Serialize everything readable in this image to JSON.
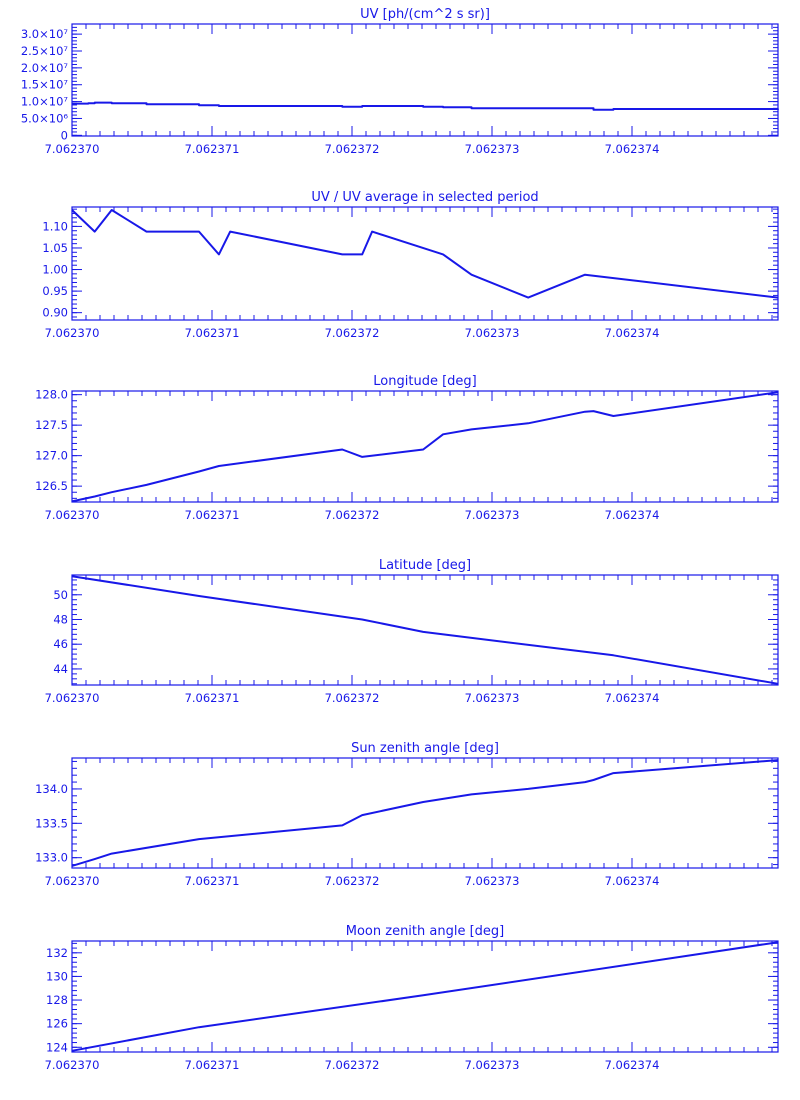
{
  "colors": {
    "line": "#1818e8",
    "background": "#ffffff"
  },
  "chart_data": [
    {
      "type": "line",
      "title": "UV [ph/(cm^2 s sr)]",
      "xlabel": "",
      "ylabel": "",
      "xlim": [
        7.062369885,
        7.06237486
      ],
      "x_ticks": [
        "7.062370",
        "7.062371",
        "7.062372",
        "7.062373",
        "7.062374"
      ],
      "ylim": [
        -200000,
        33000000
      ],
      "y_ticks": [
        {
          "value": 0,
          "label": "0"
        },
        {
          "value": 5000000,
          "label": "5.0×10⁶"
        },
        {
          "value": 10000000,
          "label": "1.0×10⁷"
        },
        {
          "value": 15000000,
          "label": "1.5×10⁷"
        },
        {
          "value": 20000000,
          "label": "2.0×10⁷"
        },
        {
          "value": 25000000,
          "label": "2.5×10⁷"
        },
        {
          "value": 30000000,
          "label": "3.0×10⁷"
        }
      ],
      "step": true,
      "series": [
        {
          "x": [
            7.062369885,
            7.06237,
            7.062370045,
            7.062370165,
            7.06237041,
            7.06237078,
            7.06237092,
            7.06237179,
            7.06237193,
            7.06237236,
            7.0623725,
            7.0623727,
            7.0623727,
            7.06237356,
            7.0623737,
            7.06237486
          ],
          "values": [
            9400000,
            9500000,
            9700000,
            9500000,
            9200000,
            8900000,
            8700000,
            8500000,
            8700000,
            8500000,
            8300000,
            8100000,
            8000000,
            7600000,
            7800000,
            7900000
          ]
        }
      ]
    },
    {
      "type": "line",
      "title": "UV / UV average in selected period",
      "xlabel": "",
      "ylabel": "",
      "xlim": [
        7.062369885,
        7.06237486
      ],
      "x_ticks": [
        "7.062370",
        "7.062371",
        "7.062372",
        "7.062373",
        "7.062374"
      ],
      "ylim": [
        0.883,
        1.145
      ],
      "y_ticks": [
        {
          "value": 0.9,
          "label": "0.90"
        },
        {
          "value": 0.95,
          "label": "0.95"
        },
        {
          "value": 1.0,
          "label": "1.00"
        },
        {
          "value": 1.05,
          "label": "1.05"
        },
        {
          "value": 1.1,
          "label": "1.10"
        }
      ],
      "series": [
        {
          "x": [
            7.062369885,
            7.062370045,
            7.062370165,
            7.06237041,
            7.06237078,
            7.06237092,
            7.062371,
            7.06237179,
            7.06237193,
            7.062372,
            7.0623725,
            7.0623727,
            7.0623731,
            7.0623735,
            7.06237486
          ],
          "values": [
            1.138,
            1.088,
            1.138,
            1.088,
            1.088,
            1.035,
            1.088,
            1.035,
            1.035,
            1.088,
            1.035,
            0.988,
            0.935,
            0.988,
            0.935
          ]
        }
      ]
    },
    {
      "type": "line",
      "title": "Longitude [deg]",
      "xlabel": "",
      "ylabel": "",
      "xlim": [
        7.062369885,
        7.06237486
      ],
      "x_ticks": [
        "7.062370",
        "7.062371",
        "7.062372",
        "7.062373",
        "7.062374"
      ],
      "ylim": [
        126.24,
        128.06
      ],
      "y_ticks": [
        {
          "value": 126.5,
          "label": "126.5"
        },
        {
          "value": 127.0,
          "label": "127.0"
        },
        {
          "value": 127.5,
          "label": "127.5"
        },
        {
          "value": 128.0,
          "label": "128.0"
        }
      ],
      "series": [
        {
          "x": [
            7.062369885,
            7.062370045,
            7.062370165,
            7.06237041,
            7.06237078,
            7.06237092,
            7.06237179,
            7.06237193,
            7.06237236,
            7.0623725,
            7.0623727,
            7.0623731,
            7.0623735,
            7.06237356,
            7.0623737,
            7.06237486
          ],
          "values": [
            126.25,
            126.33,
            126.4,
            126.52,
            126.74,
            126.83,
            127.1,
            126.98,
            127.1,
            127.35,
            127.43,
            127.53,
            127.72,
            127.73,
            127.65,
            128.04
          ]
        }
      ]
    },
    {
      "type": "line",
      "title": "Latitude [deg]",
      "xlabel": "",
      "ylabel": "",
      "xlim": [
        7.062369885,
        7.06237486
      ],
      "x_ticks": [
        "7.062370",
        "7.062371",
        "7.062372",
        "7.062373",
        "7.062374"
      ],
      "ylim": [
        42.7,
        51.6
      ],
      "y_ticks": [
        {
          "value": 44,
          "label": "44"
        },
        {
          "value": 46,
          "label": "46"
        },
        {
          "value": 48,
          "label": "48"
        },
        {
          "value": 50,
          "label": "50"
        }
      ],
      "series": [
        {
          "x": [
            7.062369885,
            7.06237078,
            7.06237193,
            7.06237236,
            7.0623737,
            7.06237486
          ],
          "values": [
            51.5,
            49.9,
            48.0,
            47.0,
            45.1,
            42.8
          ]
        }
      ]
    },
    {
      "type": "line",
      "title": "Sun zenith angle [deg]",
      "xlabel": "",
      "ylabel": "",
      "xlim": [
        7.062369885,
        7.06237486
      ],
      "x_ticks": [
        "7.062370",
        "7.062371",
        "7.062372",
        "7.062373",
        "7.062374"
      ],
      "ylim": [
        132.85,
        134.45
      ],
      "y_ticks": [
        {
          "value": 133.0,
          "label": "133.0"
        },
        {
          "value": 133.5,
          "label": "133.5"
        },
        {
          "value": 134.0,
          "label": "134.0"
        }
      ],
      "series": [
        {
          "x": [
            7.062369885,
            7.062370045,
            7.062370165,
            7.06237078,
            7.06237179,
            7.06237193,
            7.06237236,
            7.0623727,
            7.0623731,
            7.0623735,
            7.06237356,
            7.0623737,
            7.06237486
          ],
          "values": [
            132.88,
            132.98,
            133.06,
            133.27,
            133.47,
            133.62,
            133.81,
            133.92,
            134.0,
            134.1,
            134.13,
            134.23,
            134.42
          ]
        }
      ]
    },
    {
      "type": "line",
      "title": "Moon zenith angle [deg]",
      "xlabel": "",
      "ylabel": "",
      "xlim": [
        7.062369885,
        7.06237486
      ],
      "x_ticks": [
        "7.062370",
        "7.062371",
        "7.062372",
        "7.062373",
        "7.062374"
      ],
      "ylim": [
        123.6,
        133.0
      ],
      "y_ticks": [
        {
          "value": 124,
          "label": "124"
        },
        {
          "value": 126,
          "label": "126"
        },
        {
          "value": 128,
          "label": "128"
        },
        {
          "value": 130,
          "label": "130"
        },
        {
          "value": 132,
          "label": "132"
        }
      ],
      "series": [
        {
          "x": [
            7.062369885,
            7.06237078,
            7.06237236,
            7.06237486
          ],
          "values": [
            123.7,
            125.7,
            128.4,
            132.9
          ]
        }
      ]
    }
  ]
}
